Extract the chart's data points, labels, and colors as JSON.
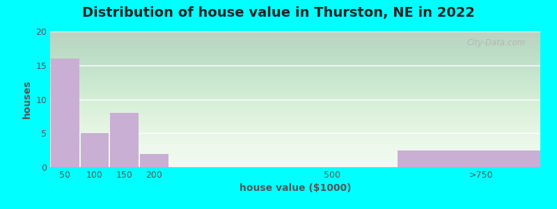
{
  "title": "Distribution of house value in Thurston, NE in 2022",
  "xlabel": "house value ($1000)",
  "ylabel": "houses",
  "bar_categories": [
    "50",
    "100",
    "150",
    "200",
    "500",
    ">750"
  ],
  "bar_values": [
    16,
    5,
    8,
    2,
    0,
    2.5
  ],
  "bar_color": "#c9afd4",
  "ylim": [
    0,
    20
  ],
  "yticks": [
    0,
    5,
    10,
    15,
    20
  ],
  "background_outer": "#00ffff",
  "grid_color": "#ffffff",
  "title_fontsize": 14,
  "axis_fontsize": 10,
  "tick_fontsize": 9,
  "watermark_text": "City-Data.com",
  "tick_positions": [
    50,
    100,
    150,
    200,
    500,
    750
  ],
  "xlim": [
    25,
    850
  ]
}
